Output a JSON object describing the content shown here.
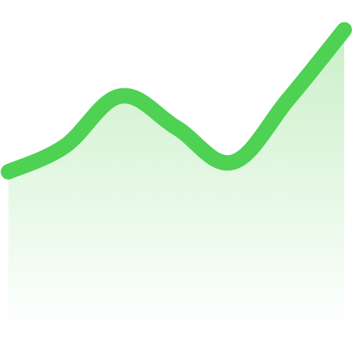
{
  "chart_data": {
    "type": "area",
    "x": [
      0,
      1,
      2,
      3,
      4,
      5,
      6
    ],
    "y": [
      0.5,
      1.3,
      2.9,
      1.9,
      0.8,
      2.8,
      5.0
    ],
    "title": "",
    "xlabel": "",
    "ylabel": "",
    "xlim": [
      0,
      6
    ],
    "ylim": [
      -4.5,
      5.5
    ],
    "grid": false,
    "legend": "none",
    "colors": {
      "line": "#4fd153",
      "fill_top": "#c9f0c7",
      "fill_bottom": "#ffffff"
    }
  }
}
